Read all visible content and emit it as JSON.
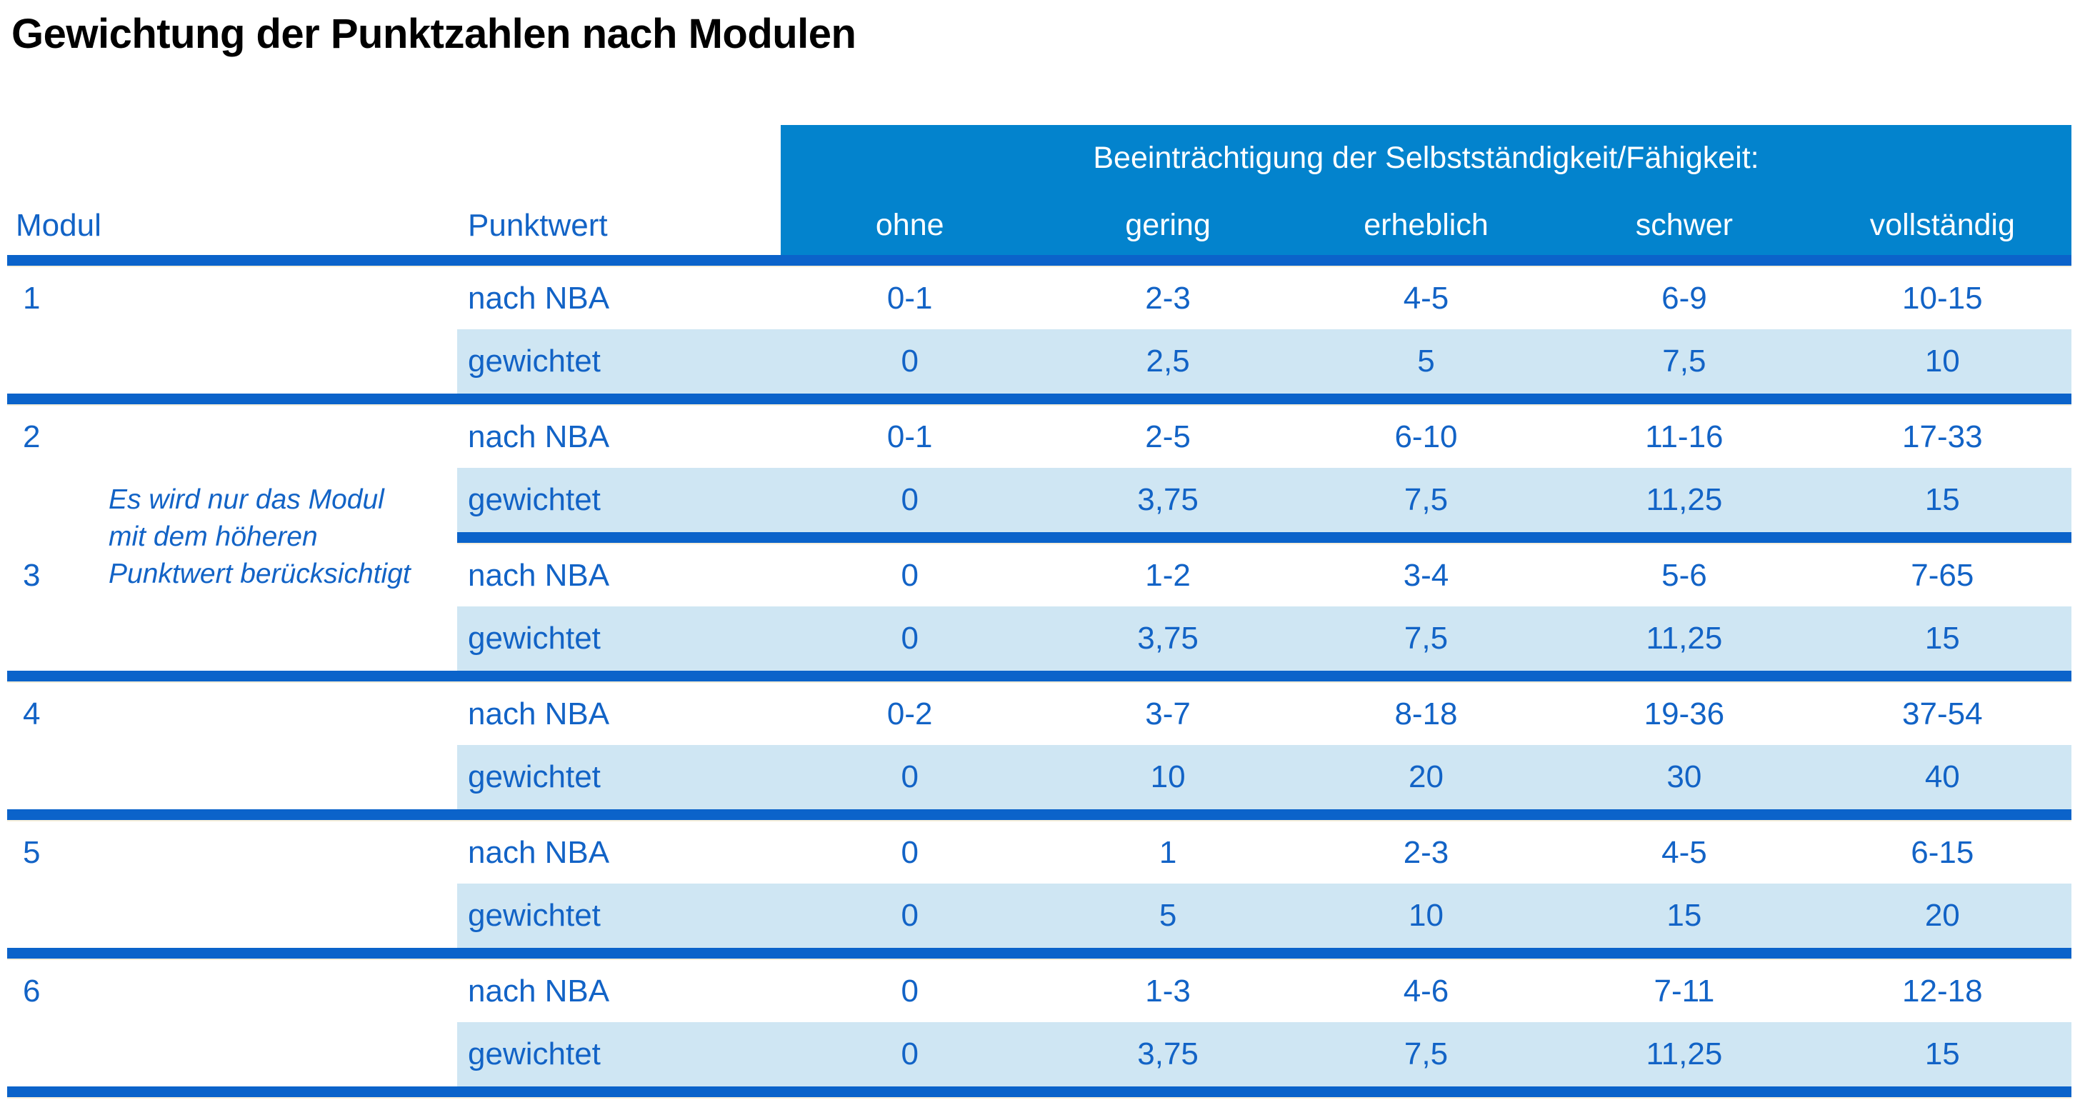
{
  "title": "Gewichtung der Punktzahlen nach Modulen",
  "colors": {
    "header_band_bg": "#0383cd",
    "divider_blue": "#0b63ca",
    "text_blue": "#1263c6",
    "weighted_row_bg": "#cfe6f3",
    "divider_underline": "#f6eeda",
    "title_black": "#000000",
    "band_text": "#ffffff"
  },
  "table": {
    "columns": {
      "modul": "Modul",
      "punktwert": "Punktwert"
    },
    "group_header": "Beeinträchtigung der Selbstständigkeit/Fähigkeit:",
    "severities": [
      "ohne",
      "gering",
      "erheblich",
      "schwer",
      "vollständig"
    ],
    "row_labels": {
      "nba": "nach NBA",
      "weighted": "gewichtet"
    },
    "note_lines": [
      "Es wird nur das Modul",
      "mit dem höheren",
      "Punktwert berücksichtigt"
    ],
    "modules": [
      {
        "id": "1",
        "nba": [
          "0-1",
          "2-3",
          "4-5",
          "6-9",
          "10-15"
        ],
        "gewichtet": [
          "0",
          "2,5",
          "5",
          "7,5",
          "10"
        ]
      },
      {
        "id": "2",
        "nba": [
          "0-1",
          "2-5",
          "6-10",
          "11-16",
          "17-33"
        ],
        "gewichtet": [
          "0",
          "3,75",
          "7,5",
          "11,25",
          "15"
        ]
      },
      {
        "id": "3",
        "nba": [
          "0",
          "1-2",
          "3-4",
          "5-6",
          "7-65"
        ],
        "gewichtet": [
          "0",
          "3,75",
          "7,5",
          "11,25",
          "15"
        ]
      },
      {
        "id": "4",
        "nba": [
          "0-2",
          "3-7",
          "8-18",
          "19-36",
          "37-54"
        ],
        "gewichtet": [
          "0",
          "10",
          "20",
          "30",
          "40"
        ]
      },
      {
        "id": "5",
        "nba": [
          "0",
          "1",
          "2-3",
          "4-5",
          "6-15"
        ],
        "gewichtet": [
          "0",
          "5",
          "10",
          "15",
          "20"
        ]
      },
      {
        "id": "6",
        "nba": [
          "0",
          "1-3",
          "4-6",
          "7-11",
          "12-18"
        ],
        "gewichtet": [
          "0",
          "3,75",
          "7,5",
          "11,25",
          "15"
        ]
      }
    ]
  }
}
